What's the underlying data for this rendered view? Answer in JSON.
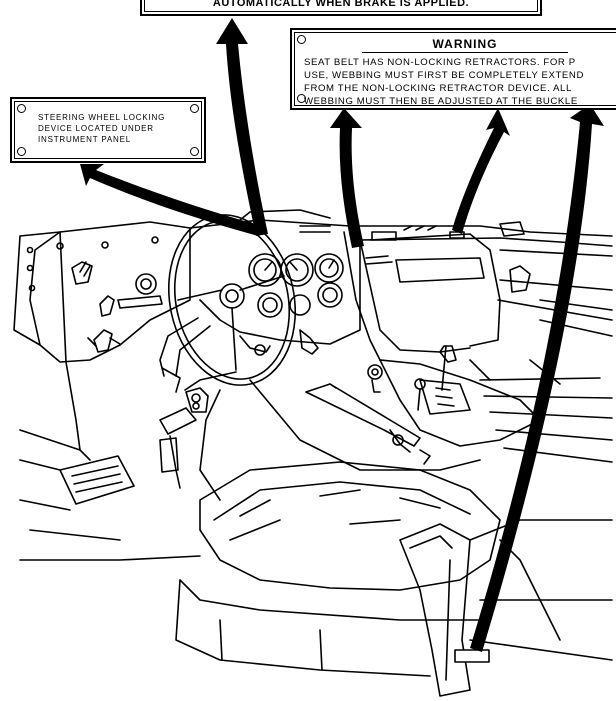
{
  "plates": {
    "top_notice": "AUTOMATICALLY WHEN BRAKE IS APPLIED.",
    "warning": {
      "title": "WARNING",
      "lines": [
        "SEAT BELT HAS NON-LOCKING RETRACTORS. FOR P",
        "USE, WEBBING MUST FIRST BE COMPLETELY EXTEND",
        "FROM THE NON-LOCKING RETRACTOR DEVICE. ALL",
        "WEBBING MUST THEN BE ADJUSTED AT THE BUCKLE"
      ]
    },
    "steering_lock": {
      "lines": [
        "STEERING WHEEL LOCKING",
        "DEVICE LOCATED UNDER",
        "INSTRUMENT PANEL"
      ]
    }
  },
  "colors": {
    "ink": "#000000",
    "paper": "#ffffff"
  },
  "icons": [
    "callout-arrow-icon",
    "steering-wheel-icon",
    "gauge-icon",
    "shift-lever-icon",
    "pedal-icon"
  ]
}
